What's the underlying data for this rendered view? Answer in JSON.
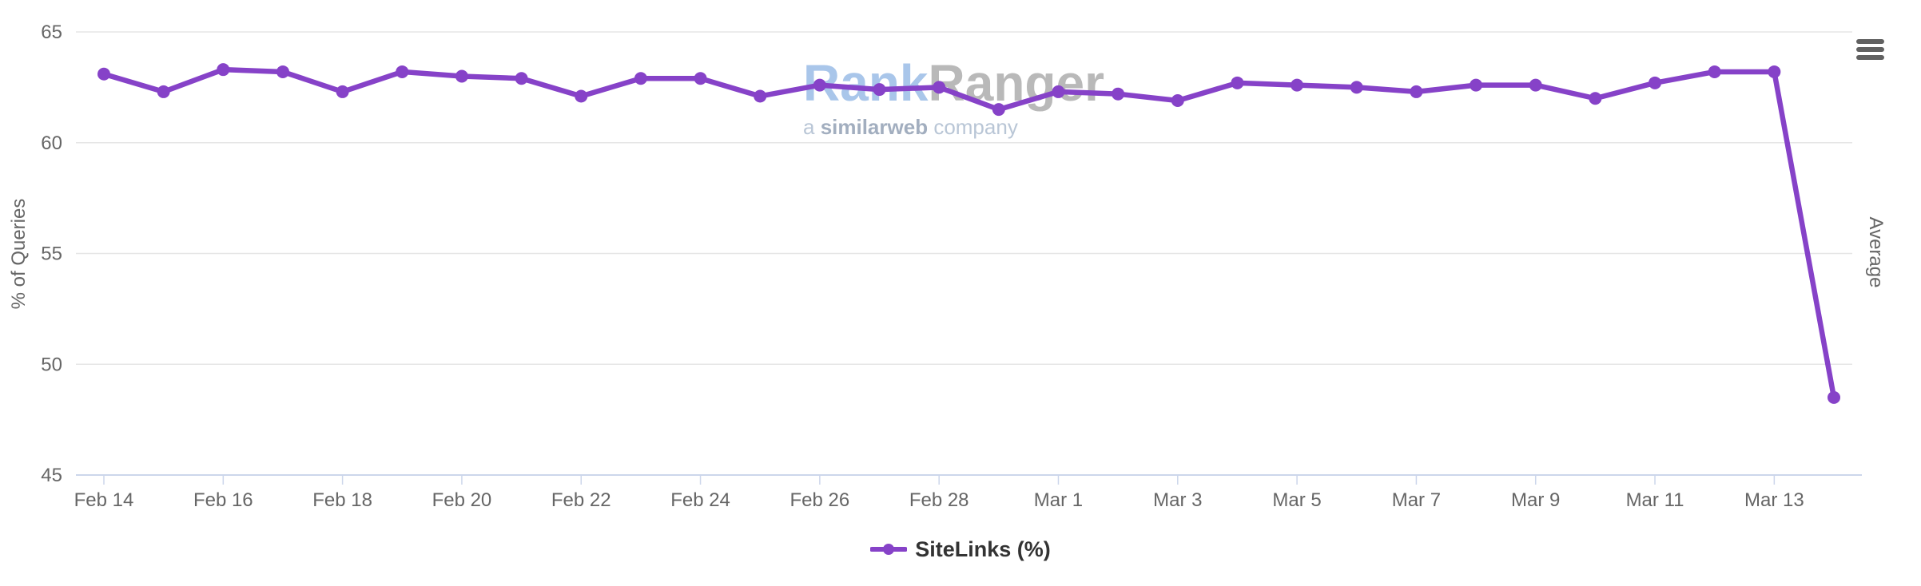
{
  "chart_data": {
    "type": "line",
    "title": "",
    "x": [
      "Feb 14",
      "Feb 15",
      "Feb 16",
      "Feb 17",
      "Feb 18",
      "Feb 19",
      "Feb 20",
      "Feb 21",
      "Feb 22",
      "Feb 23",
      "Feb 24",
      "Feb 25",
      "Feb 26",
      "Feb 27",
      "Feb 28",
      "Feb 29",
      "Mar 1",
      "Mar 2",
      "Mar 3",
      "Mar 4",
      "Mar 5",
      "Mar 6",
      "Mar 7",
      "Mar 8",
      "Mar 9",
      "Mar 10",
      "Mar 11",
      "Mar 12",
      "Mar 13",
      "Mar 14"
    ],
    "series": [
      {
        "name": "SiteLinks (%)",
        "color": "#8642c8",
        "values": [
          63.1,
          62.3,
          63.3,
          63.2,
          62.3,
          63.2,
          63.0,
          62.9,
          62.1,
          62.9,
          62.9,
          62.1,
          62.6,
          62.4,
          62.5,
          61.5,
          62.3,
          62.2,
          61.9,
          62.7,
          62.6,
          62.5,
          62.3,
          62.6,
          62.6,
          62.0,
          62.7,
          63.2,
          63.2,
          48.5
        ]
      }
    ],
    "xlabel": "",
    "ylabel": "% of Queries",
    "right_axis_label": "Average",
    "ylim": [
      45,
      65
    ],
    "yticks": [
      45,
      50,
      55,
      60,
      65
    ],
    "xtick_labels": [
      "Feb 14",
      "Feb 16",
      "Feb 18",
      "Feb 20",
      "Feb 22",
      "Feb 24",
      "Feb 26",
      "Feb 28",
      "Mar 1",
      "Mar 3",
      "Mar 5",
      "Mar 7",
      "Mar 9",
      "Mar 11",
      "Mar 13"
    ],
    "xtick_every": 2,
    "grid": true,
    "legend_position": "bottom-center",
    "marker": "circle"
  },
  "watermark": {
    "brand_part1": "Rank",
    "brand_part2": "Ranger",
    "tagline_prefix": "a ",
    "tagline_bold": "similarweb",
    "tagline_suffix": " company"
  },
  "icons": {
    "menu": "hamburger-menu"
  },
  "colors": {
    "series": "#8642c8",
    "grid_line": "#e6e6e6",
    "axis_line": "#ccd6eb",
    "tick_label": "#666666",
    "axis_title": "#666666",
    "legend_text": "#333333",
    "menu_icon": "#616161",
    "watermark_rank": "#a9c6ea",
    "watermark_ranger": "#b9b9b9",
    "watermark_tagline": "#a2aebf",
    "watermark_tagline_light": "#b9c6d6",
    "background": "#ffffff"
  }
}
